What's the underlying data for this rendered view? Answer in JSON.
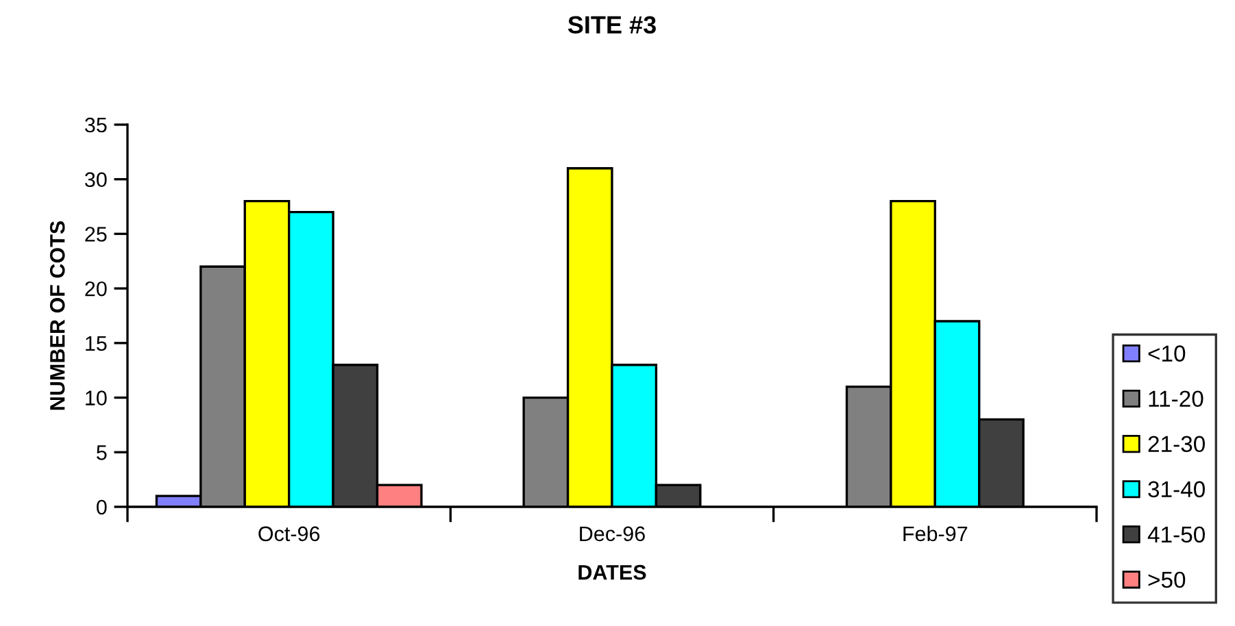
{
  "chart_data": {
    "type": "bar",
    "title": "SITE #3",
    "xlabel": "DATES",
    "ylabel": "NUMBER OF COTS",
    "categories": [
      "Oct-96",
      "Dec-96",
      "Feb-97"
    ],
    "series": [
      {
        "name": "<10",
        "color": "#8080ff",
        "values": [
          1,
          null,
          null
        ]
      },
      {
        "name": "11-20",
        "color": "#808080",
        "values": [
          22,
          10,
          11
        ]
      },
      {
        "name": "21-30",
        "color": "#ffff00",
        "values": [
          28,
          31,
          28
        ]
      },
      {
        "name": "31-40",
        "color": "#00ffff",
        "values": [
          27,
          13,
          17
        ]
      },
      {
        "name": "41-50",
        "color": "#404040",
        "values": [
          13,
          2,
          8
        ]
      },
      {
        "name": ">50",
        "color": "#ff8080",
        "values": [
          2,
          null,
          null
        ]
      }
    ],
    "ylim": [
      0,
      35
    ],
    "yticks": [
      0,
      5,
      10,
      15,
      20,
      25,
      30,
      35
    ],
    "grid": false,
    "legend": "right"
  }
}
